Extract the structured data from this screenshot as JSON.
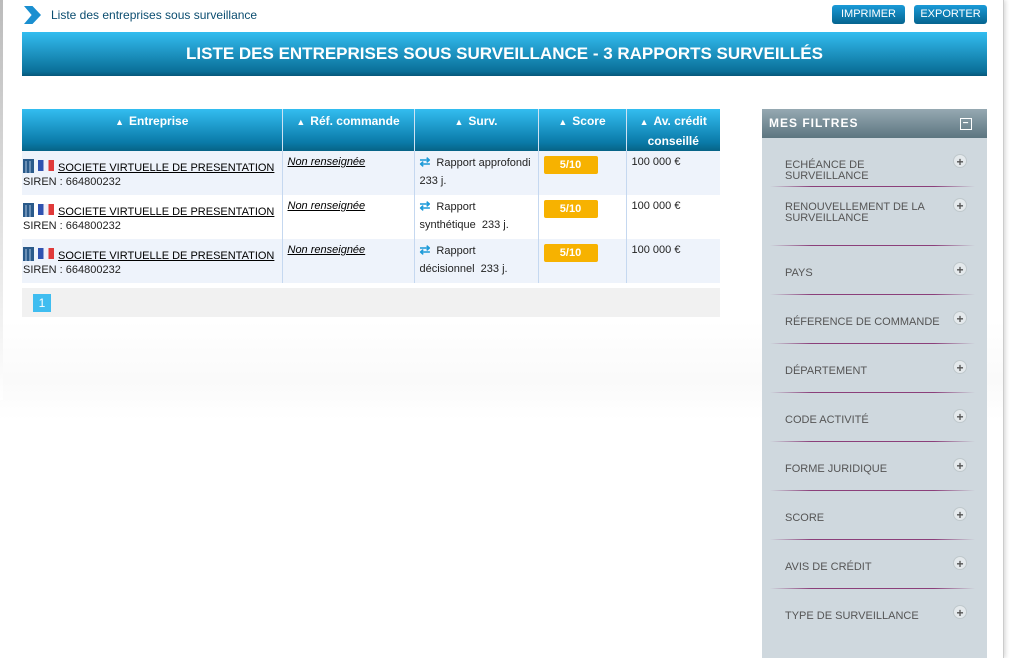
{
  "breadcrumb": "Liste des entreprises sous surveillance",
  "toolbar": {
    "print": "IMPRIMER",
    "export": "EXPORTER"
  },
  "banner": "LISTE DES ENTREPRISES SOUS SURVEILLANCE - 3 RAPPORTS SURVEILLÉS",
  "table": {
    "headers": [
      "Entreprise",
      "Réf. commande",
      "Surv.",
      "Score",
      "Av. crédit conseillé"
    ],
    "rows": [
      {
        "company": "SOCIETE VIRTUELLE DE PRESENTATION",
        "siren": "SIREN : 664800232",
        "ref": "Non renseignée",
        "surv": "Rapport approfondi",
        "days": "233 j.",
        "score": "5/10",
        "credit": "100 000 €"
      },
      {
        "company": "SOCIETE VIRTUELLE DE PRESENTATION",
        "siren": "SIREN : 664800232",
        "ref": "Non renseignée",
        "surv": "Rapport synthétique",
        "days": "233 j.",
        "score": "5/10",
        "credit": "100 000 €"
      },
      {
        "company": "SOCIETE VIRTUELLE DE PRESENTATION",
        "siren": "SIREN : 664800232",
        "ref": "Non renseignée",
        "surv": "Rapport décisionnel",
        "days": "233 j.",
        "score": "5/10",
        "credit": "100 000 €"
      }
    ]
  },
  "pagination": {
    "current": "1"
  },
  "filters": {
    "title": "MES FILTRES",
    "items": [
      "ECHÉANCE DE SURVEILLANCE",
      "RENOUVELLEMENT DE LA SURVEILLANCE",
      "PAYS",
      "RÉFERENCE DE COMMANDE",
      "DÉPARTEMENT",
      "CODE ACTIVITÉ",
      "FORME JURIDIQUE",
      "SCORE",
      "AVIS DE CRÉDIT",
      "TYPE DE SURVEILLANCE"
    ]
  },
  "colors": {
    "accent": "#1a9ad8",
    "score": "#f7b200",
    "filters_bg": "#cfd8de"
  }
}
